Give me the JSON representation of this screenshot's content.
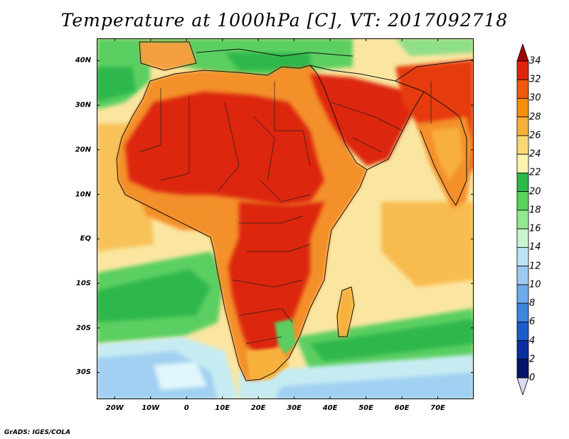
{
  "title": "Temperature at 1000hPa [C], VT: 2017092718",
  "credit": "GrADS: IGES/COLA",
  "map": {
    "lon_range": [
      -25,
      80
    ],
    "lat_range": [
      -36,
      45
    ],
    "lat_ticks": [
      {
        "value": 40,
        "label": "40N"
      },
      {
        "value": 30,
        "label": "30N"
      },
      {
        "value": 20,
        "label": "20N"
      },
      {
        "value": 10,
        "label": "10N"
      },
      {
        "value": 0,
        "label": "EQ"
      },
      {
        "value": -10,
        "label": "10S"
      },
      {
        "value": -20,
        "label": "20S"
      },
      {
        "value": -30,
        "label": "30S"
      }
    ],
    "lon_ticks": [
      {
        "value": -20,
        "label": "20W"
      },
      {
        "value": -10,
        "label": "10W"
      },
      {
        "value": 0,
        "label": "0"
      },
      {
        "value": 10,
        "label": "10E"
      },
      {
        "value": 20,
        "label": "20E"
      },
      {
        "value": 30,
        "label": "30E"
      },
      {
        "value": 40,
        "label": "40E"
      },
      {
        "value": 50,
        "label": "50E"
      },
      {
        "value": 60,
        "label": "60E"
      },
      {
        "value": 70,
        "label": "70E"
      }
    ]
  },
  "colorbar": {
    "labels": [
      "34",
      "32",
      "30",
      "28",
      "26",
      "24",
      "22",
      "20",
      "18",
      "16",
      "14",
      "12",
      "10",
      "8",
      "6",
      "4",
      "2",
      "0"
    ],
    "colors": [
      "#a00000",
      "#e0240c",
      "#f05a0a",
      "#f68e08",
      "#f8b03c",
      "#fad878",
      "#fcf4b0",
      "#2db84a",
      "#5ad25c",
      "#94e88e",
      "#c8f5d0",
      "#bde3f7",
      "#9ccaf2",
      "#6eaaeb",
      "#3e85e0",
      "#1c5cc8",
      "#0a2fa0",
      "#05146a",
      "#dcd8f2"
    ]
  }
}
